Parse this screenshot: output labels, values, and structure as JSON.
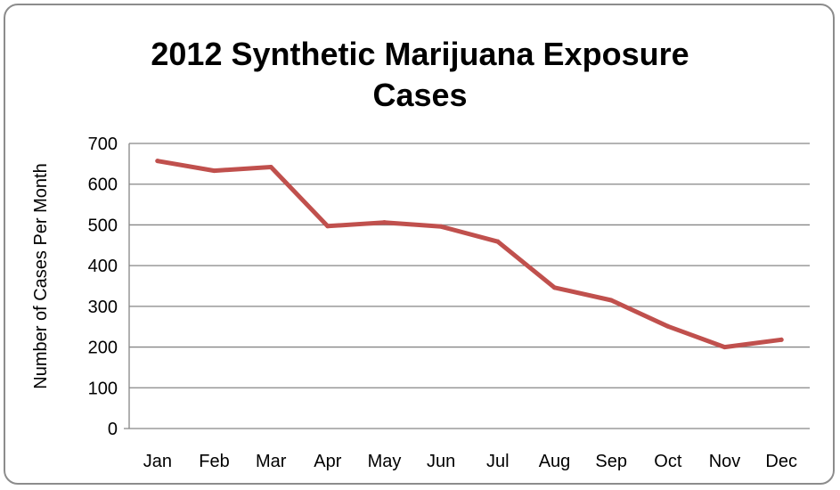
{
  "chart_data": {
    "type": "line",
    "title_lines": [
      "2012 Synthetic Marijuana Exposure",
      "Cases"
    ],
    "xlabel": "",
    "ylabel": "Number of Cases Per Month",
    "categories": [
      "Jan",
      "Feb",
      "Mar",
      "Apr",
      "May",
      "Jun",
      "Jul",
      "Aug",
      "Sep",
      "Oct",
      "Nov",
      "Dec"
    ],
    "series": [
      {
        "values": [
          657,
          633,
          642,
          497,
          506,
          496,
          459,
          346,
          315,
          251,
          200,
          218
        ]
      }
    ],
    "ylim": [
      0,
      700
    ],
    "yticks": [
      0,
      100,
      200,
      300,
      400,
      500,
      600,
      700
    ],
    "grid": true,
    "legend": "none",
    "colors": {
      "line": "#c0504d",
      "grid": "#868686",
      "axis": "#868686",
      "border": "#8c8c8c"
    }
  }
}
